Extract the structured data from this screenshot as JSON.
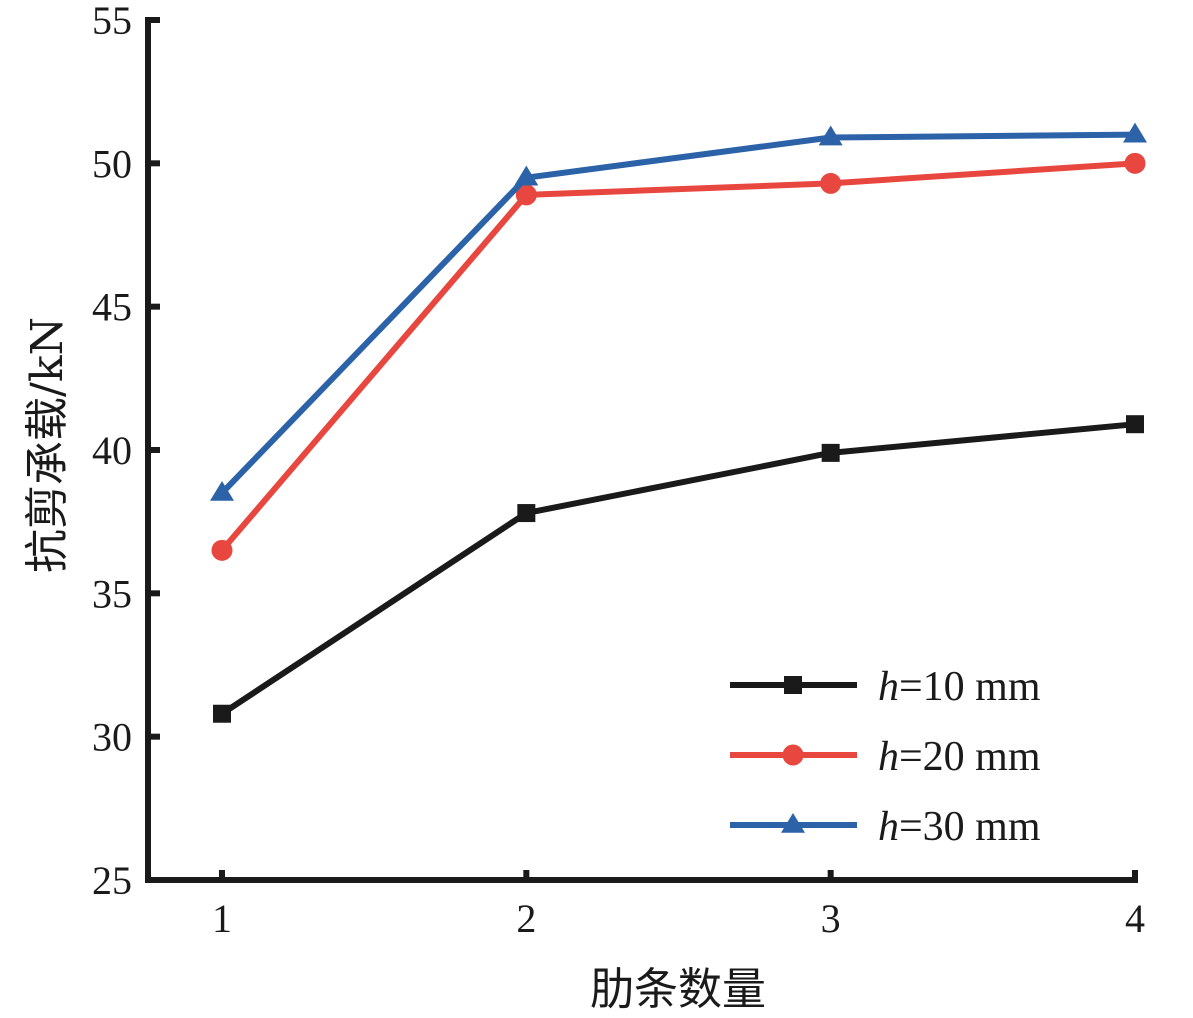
{
  "chart_data": {
    "type": "line",
    "title": "",
    "xlabel": "肋条数量",
    "ylabel": "抗剪承载/kN",
    "x": [
      1,
      2,
      3,
      4
    ],
    "xticks": [
      "1",
      "2",
      "3",
      "4"
    ],
    "xlim": [
      0.75,
      4
    ],
    "ylim": [
      25,
      55
    ],
    "yticks": [
      "25",
      "30",
      "35",
      "40",
      "45",
      "50",
      "55"
    ],
    "ytick_values": [
      25,
      30,
      35,
      40,
      45,
      50,
      55
    ],
    "grid": false,
    "legend_position": "bottom-right",
    "series": [
      {
        "name": "h=10 mm",
        "var": "h",
        "label_rest": "=10 mm",
        "color": "#1a1a1a",
        "marker": "square",
        "values": [
          30.8,
          37.8,
          39.9,
          40.9
        ]
      },
      {
        "name": "h=20 mm",
        "var": "h",
        "label_rest": "=20 mm",
        "color": "#e8473f",
        "marker": "circle",
        "values": [
          36.5,
          48.9,
          49.3,
          50.0
        ]
      },
      {
        "name": "h=30 mm",
        "var": "h",
        "label_rest": "=30 mm",
        "color": "#2c62a8",
        "marker": "triangle",
        "values": [
          38.5,
          49.5,
          50.9,
          51.0
        ]
      }
    ]
  }
}
